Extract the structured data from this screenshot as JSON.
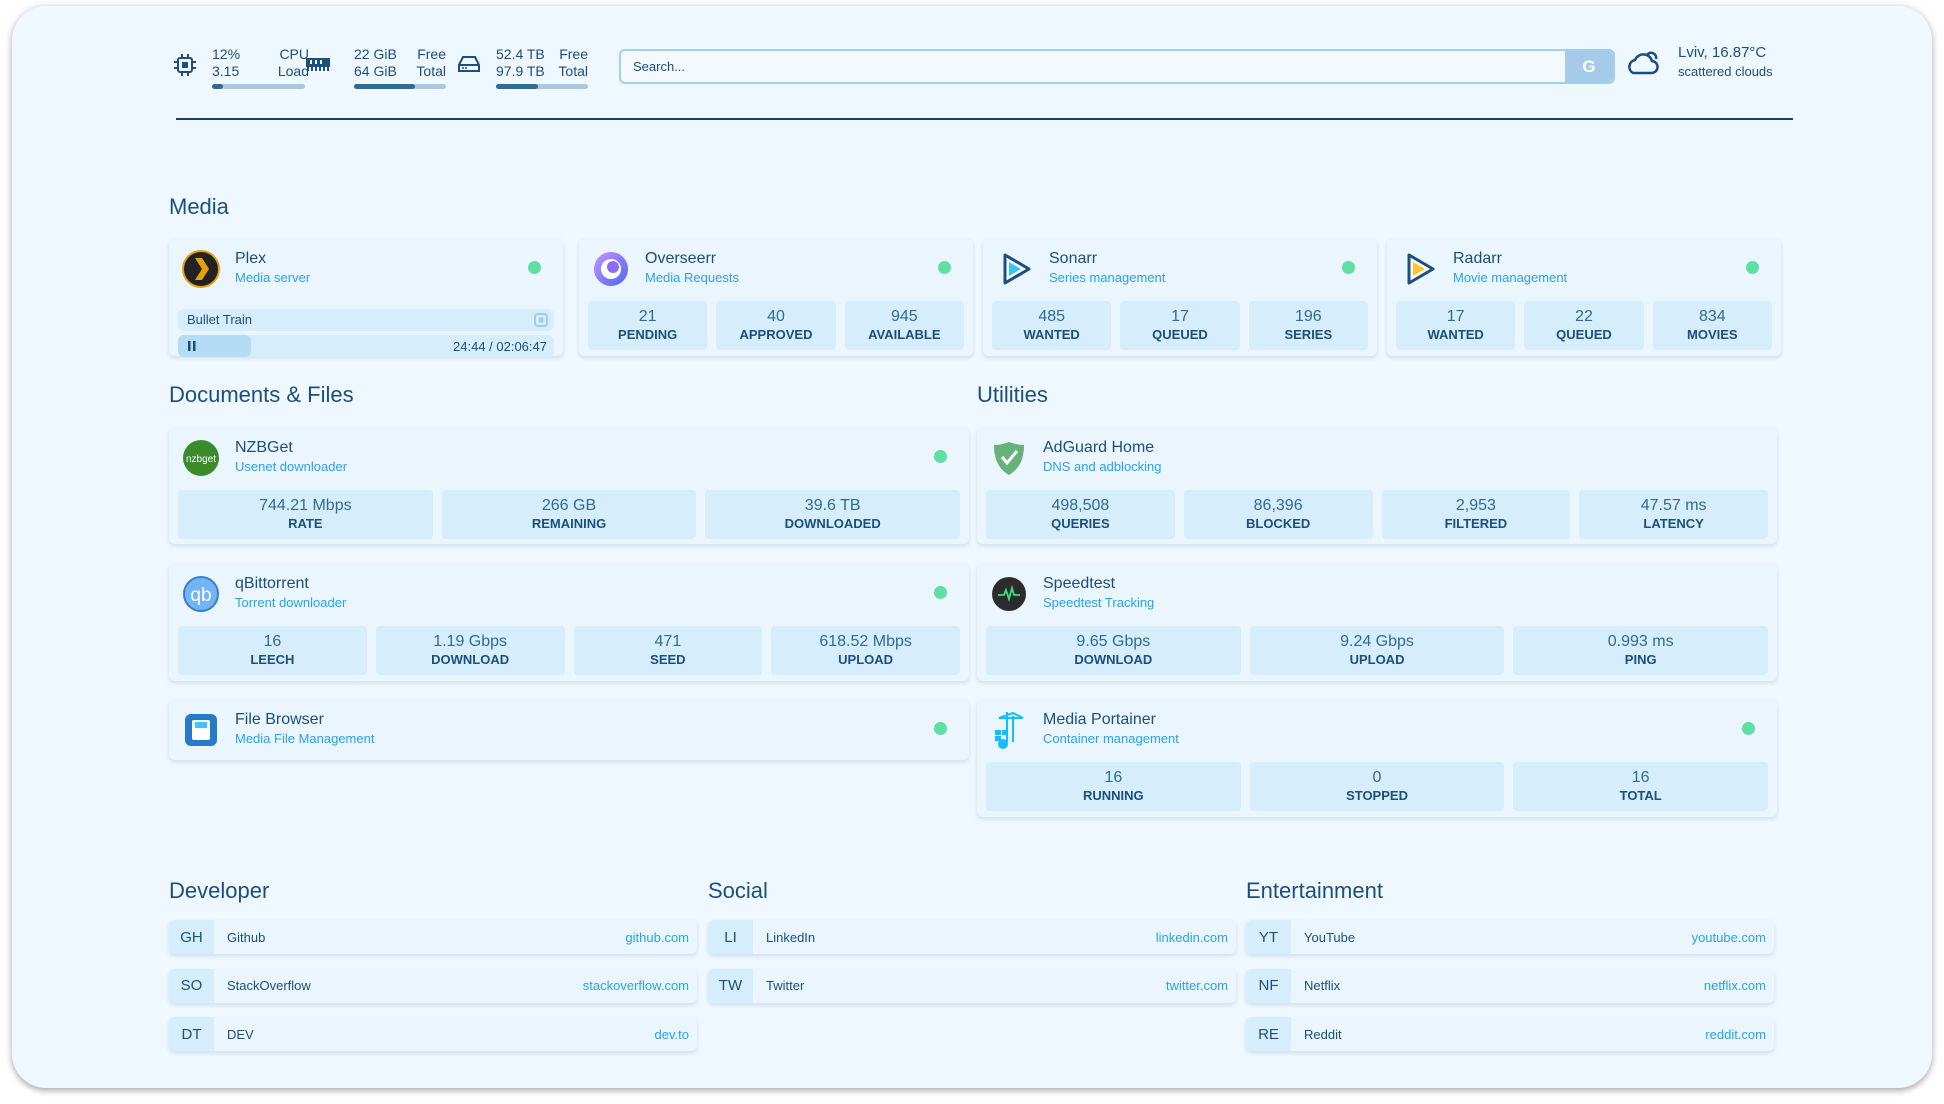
{
  "header": {
    "cpu": {
      "icon": "cpu-icon",
      "usage": "12%",
      "load": "3.15",
      "label1": "CPU",
      "label2": "Load",
      "fill": 0.12
    },
    "memory": {
      "icon": "memory-icon",
      "free": "22 GiB",
      "total": "64 GiB",
      "label1": "Free",
      "label2": "Total",
      "fill": 0.66
    },
    "disk": {
      "icon": "disk-icon",
      "free": "52.4 TB",
      "total": "97.9 TB",
      "label1": "Free",
      "label2": "Total",
      "fill": 0.46
    },
    "search": {
      "placeholder": "Search...",
      "button": "G"
    },
    "weather": {
      "icon": "cloud-sun-icon",
      "location_temp": "Lviv, 16.87°C",
      "condition": "scattered clouds"
    }
  },
  "sections": {
    "media": "Media",
    "docs": "Documents & Files",
    "utilities": "Utilities",
    "developer": "Developer",
    "social": "Social",
    "entertainment": "Entertainment"
  },
  "plex": {
    "title": "Plex",
    "subtitle": "Media server",
    "icon": "plex-icon",
    "now_playing": "Bullet Train",
    "time": "24:44 / 02:06:47",
    "progress": 0.195,
    "status_color": "#5fdfa4"
  },
  "cards": [
    {
      "title": "Overseerr",
      "subtitle": "Media Requests",
      "icon": "overseerr-icon",
      "status": true,
      "stats": [
        {
          "v": "21",
          "l": "PENDING"
        },
        {
          "v": "40",
          "l": "APPROVED"
        },
        {
          "v": "945",
          "l": "AVAILABLE"
        }
      ]
    },
    {
      "title": "Sonarr",
      "subtitle": "Series management",
      "icon": "sonarr-icon",
      "status": true,
      "stats": [
        {
          "v": "485",
          "l": "WANTED"
        },
        {
          "v": "17",
          "l": "QUEUED"
        },
        {
          "v": "196",
          "l": "SERIES"
        }
      ]
    },
    {
      "title": "Radarr",
      "subtitle": "Movie management",
      "icon": "radarr-icon",
      "status": true,
      "stats": [
        {
          "v": "17",
          "l": "WANTED"
        },
        {
          "v": "22",
          "l": "QUEUED"
        },
        {
          "v": "834",
          "l": "MOVIES"
        }
      ]
    },
    {
      "title": "NZBGet",
      "subtitle": "Usenet downloader",
      "icon": "nzbget-icon",
      "logo_text": "nzbget",
      "status": true,
      "stats": [
        {
          "v": "744.21 Mbps",
          "l": "RATE"
        },
        {
          "v": "266 GB",
          "l": "REMAINING"
        },
        {
          "v": "39.6 TB",
          "l": "DOWNLOADED"
        }
      ]
    },
    {
      "title": "qBittorrent",
      "subtitle": "Torrent downloader",
      "icon": "qbittorrent-icon",
      "logo_text": "qb",
      "status": true,
      "stats": [
        {
          "v": "16",
          "l": "LEECH"
        },
        {
          "v": "1.19 Gbps",
          "l": "DOWNLOAD"
        },
        {
          "v": "471",
          "l": "SEED"
        },
        {
          "v": "618.52 Mbps",
          "l": "UPLOAD"
        }
      ]
    },
    {
      "title": "File Browser",
      "subtitle": "Media File Management",
      "icon": "file-browser-icon",
      "status": true,
      "stats": []
    },
    {
      "title": "AdGuard Home",
      "subtitle": "DNS and adblocking",
      "icon": "adguard-icon",
      "status": false,
      "stats": [
        {
          "v": "498,508",
          "l": "QUERIES"
        },
        {
          "v": "86,396",
          "l": "BLOCKED"
        },
        {
          "v": "2,953",
          "l": "FILTERED"
        },
        {
          "v": "47.57 ms",
          "l": "LATENCY"
        }
      ]
    },
    {
      "title": "Speedtest",
      "subtitle": "Speedtest Tracking",
      "icon": "speedtest-icon",
      "status": false,
      "stats": [
        {
          "v": "9.65 Gbps",
          "l": "DOWNLOAD"
        },
        {
          "v": "9.24 Gbps",
          "l": "UPLOAD"
        },
        {
          "v": "0.993 ms",
          "l": "PING"
        }
      ]
    },
    {
      "title": "Media Portainer",
      "subtitle": "Container management",
      "icon": "portainer-icon",
      "status": true,
      "stats": [
        {
          "v": "16",
          "l": "RUNNING"
        },
        {
          "v": "0",
          "l": "STOPPED"
        },
        {
          "v": "16",
          "l": "TOTAL"
        }
      ]
    }
  ],
  "links": {
    "developer": [
      {
        "ab": "GH",
        "name": "Github",
        "url": "github.com"
      },
      {
        "ab": "SO",
        "name": "StackOverflow",
        "url": "stackoverflow.com"
      },
      {
        "ab": "DT",
        "name": "DEV",
        "url": "dev.to"
      }
    ],
    "social": [
      {
        "ab": "LI",
        "name": "LinkedIn",
        "url": "linkedin.com"
      },
      {
        "ab": "TW",
        "name": "Twitter",
        "url": "twitter.com"
      }
    ],
    "entertainment": [
      {
        "ab": "YT",
        "name": "YouTube",
        "url": "youtube.com"
      },
      {
        "ab": "NF",
        "name": "Netflix",
        "url": "netflix.com"
      },
      {
        "ab": "RE",
        "name": "Reddit",
        "url": "reddit.com"
      }
    ]
  },
  "colors": {
    "background": "#eff7ff",
    "card": "#eaf5fe",
    "stat_box": "#d6edfc",
    "text": "#1b4f7e",
    "accent": "#2ba3e6",
    "status_online": "#5fdfa4"
  }
}
